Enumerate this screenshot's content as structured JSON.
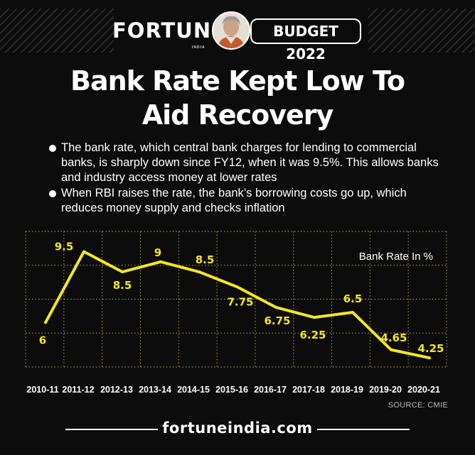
{
  "header": {
    "brand": "FORTUNE",
    "brand_sub": "INDIA",
    "badge": "BUDGET 2022"
  },
  "title_lines": [
    "Bank Rate Kept Low To",
    "Aid Recovery"
  ],
  "bullets": [
    "The bank rate, which central bank charges for lending to commercial banks, is sharply down since FY12, when it was 9.5%. This allows banks and industry access money at lower rates",
    "When RBI raises the rate, the bank’s borrowing costs go up, which reduces money supply and checks inflation"
  ],
  "chart_data": {
    "type": "line",
    "categories": [
      "2010-11",
      "2011-12",
      "2012-13",
      "2013-14",
      "2014-15",
      "2015-16",
      "2016-17",
      "2017-18",
      "2018-19",
      "2019-20",
      "2020-21"
    ],
    "series": [
      {
        "name": "Bank Rate In %",
        "values": [
          6,
          9.5,
          8.5,
          9,
          8.5,
          7.75,
          6.75,
          6.25,
          6.5,
          4.65,
          4.25
        ],
        "color": "#f5e61e"
      }
    ],
    "data_labels": [
      "6",
      "9.5",
      "8.5",
      "9",
      "8.5",
      "7.75",
      "6.75",
      "6.25",
      "6.5",
      "4.65",
      "4.25"
    ],
    "legend_text": "Bank Rate In %",
    "legend_position": "top-right",
    "grid": true,
    "grid_color": "#b9a93a",
    "ylim": [
      3.8,
      10.5
    ],
    "source": "SOURCE: CMIE"
  },
  "footer": {
    "site": "fortuneindia.com"
  }
}
